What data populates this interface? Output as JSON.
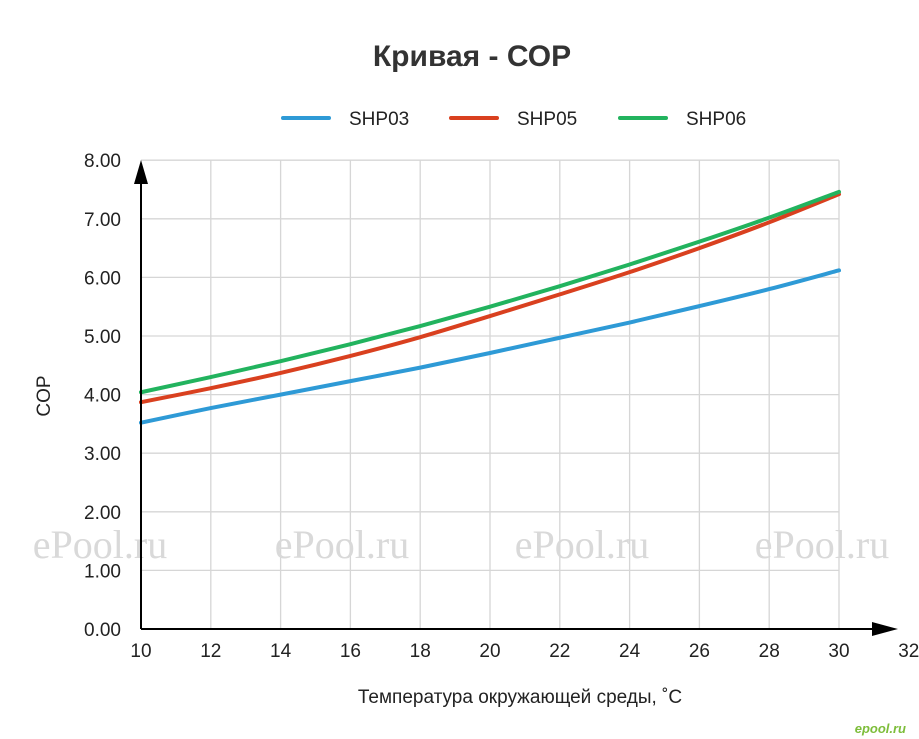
{
  "chart_data": {
    "type": "line",
    "title": "Кривая - СОР",
    "xlabel": "Температура окружающей среды, ˚C",
    "ylabel": "COP",
    "xlim": [
      10,
      32
    ],
    "ylim": [
      0,
      8
    ],
    "x_ticks": [
      "10",
      "12",
      "14",
      "16",
      "18",
      "20",
      "22",
      "24",
      "26",
      "28",
      "30",
      "32"
    ],
    "y_ticks": [
      "0.00",
      "1.00",
      "2.00",
      "3.00",
      "4.00",
      "5.00",
      "6.00",
      "7.00",
      "8.00"
    ],
    "grid": true,
    "legend_position": "top",
    "x": [
      10,
      12,
      14,
      16,
      18,
      20,
      22,
      24,
      26,
      28,
      30
    ],
    "series": [
      {
        "name": "SHP03",
        "color": "#2e9ad6",
        "values": [
          3.52,
          3.77,
          4.0,
          4.23,
          4.46,
          4.71,
          4.97,
          5.23,
          5.51,
          5.8,
          6.12
        ]
      },
      {
        "name": "SHP05",
        "color": "#d9401f",
        "values": [
          3.87,
          4.11,
          4.37,
          4.66,
          4.98,
          5.34,
          5.71,
          6.09,
          6.5,
          6.94,
          7.42
        ]
      },
      {
        "name": "SHP06",
        "color": "#22b35e",
        "values": [
          4.04,
          4.3,
          4.57,
          4.86,
          5.17,
          5.5,
          5.85,
          6.22,
          6.61,
          7.02,
          7.46
        ]
      }
    ]
  },
  "watermarks": [
    "ePool.ru",
    "ePool.ru",
    "ePool.ru",
    "ePool.ru"
  ],
  "corner_mark": "epool.ru"
}
